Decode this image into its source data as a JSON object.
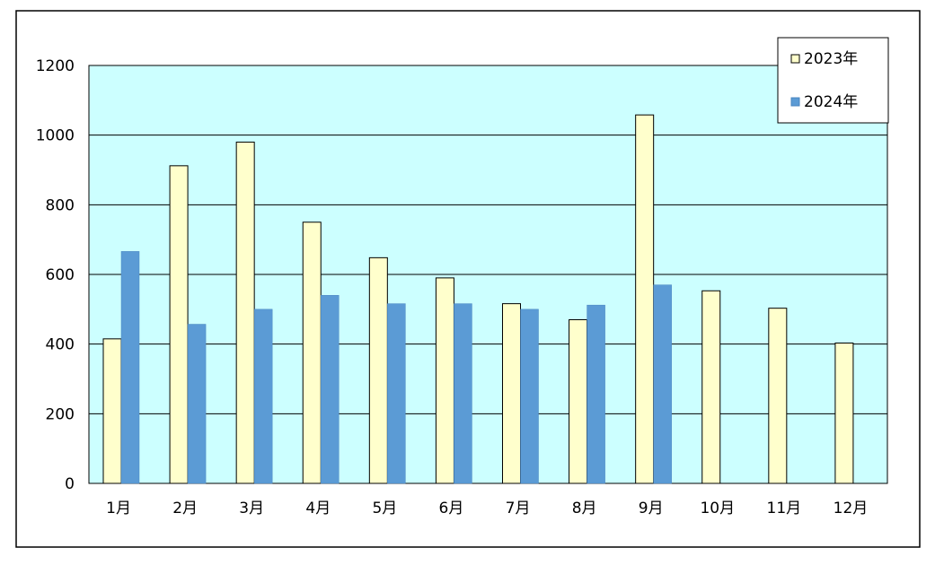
{
  "chart_data": {
    "type": "bar",
    "categories": [
      "1月",
      "2月",
      "3月",
      "4月",
      "5月",
      "6月",
      "7月",
      "8月",
      "9月",
      "10月",
      "11月",
      "12月"
    ],
    "series": [
      {
        "name": "2023年",
        "color": "#FFFFCC",
        "values": [
          415,
          912,
          980,
          750,
          648,
          590,
          516,
          470,
          1058,
          553,
          503,
          403
        ]
      },
      {
        "name": "2024年",
        "color": "#5B9BD5",
        "values": [
          666,
          457,
          500,
          540,
          516,
          516,
          500,
          512,
          570,
          null,
          null,
          null
        ]
      }
    ],
    "ylim": [
      0,
      1200
    ],
    "yticks": [
      0,
      200,
      400,
      600,
      800,
      1000,
      1200
    ],
    "grid": true,
    "plot_background": "#CCFFFF",
    "legend_position": "top-right"
  }
}
